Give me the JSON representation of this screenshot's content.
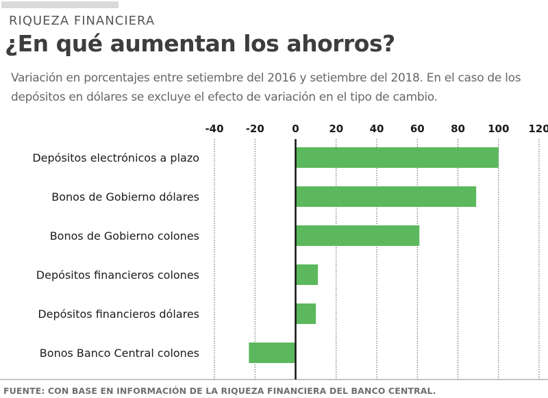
{
  "header": {
    "kicker": "RIQUEZA FINANCIERA",
    "title": "¿En qué aumentan los ahorros?",
    "subtitle": "Variación en porcentajes entre setiembre del 2016 y setiembre del 2018. En el caso de los depósitos en dólares se excluye el efecto de variación en el tipo de cambio."
  },
  "footer": {
    "source": "FUENTE: CON BASE EN INFORMACIÓN DE LA RIQUEZA FINANCIERA DEL BANCO CENTRAL."
  },
  "colors": {
    "bar": "#5cb85c",
    "zero_line": "#111111",
    "grid": "#555555",
    "text": "#1a1a1a"
  },
  "chart_data": {
    "type": "bar",
    "orientation": "horizontal",
    "title": "¿En qué aumentan los ahorros?",
    "xlabel": "",
    "ylabel": "",
    "categories": [
      "Depósitos electrónicos a plazo",
      "Bonos de Gobierno dólares",
      "Bonos de Gobierno colones",
      "Depósitos financieros colones",
      "Depósitos financieros dólares",
      "Bonos Banco Central colones"
    ],
    "values": [
      100,
      89,
      61,
      11,
      10,
      -23
    ],
    "xlim": [
      -40,
      120
    ],
    "xticks": [
      -40,
      -20,
      0,
      20,
      40,
      60,
      80,
      100,
      120
    ],
    "xtick_labels": [
      "-40",
      "-20",
      "0",
      "20",
      "40",
      "60",
      "80",
      "100",
      "120"
    ],
    "axis_position": "top",
    "grid": true,
    "grid_style": "dotted-vertical",
    "legend": "none"
  }
}
